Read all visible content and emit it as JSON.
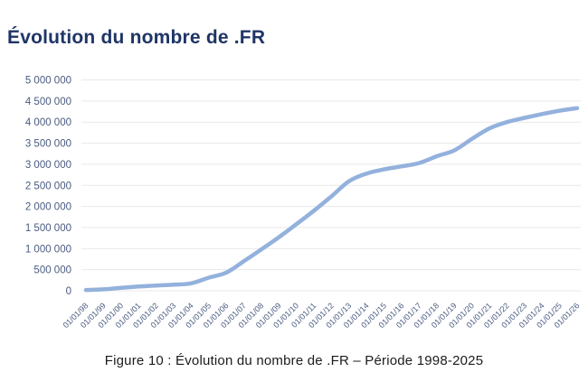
{
  "header": {
    "title": "Évolution du nombre de .FR"
  },
  "caption": {
    "text": "Figure 10 : Évolution du nombre de .FR – Période 1998-2025"
  },
  "colors": {
    "title": "#1f3566",
    "axis_label": "#4a5b80",
    "gridline": "#e9e9e9",
    "line": "#93b1dc",
    "caption": "#1c1c1c",
    "background": "#ffffff"
  },
  "chart_data": {
    "type": "line",
    "title": "Évolution du nombre de .FR",
    "xlabel": "",
    "ylabel": "",
    "x": [
      "01/01/98",
      "01/01/99",
      "01/01/00",
      "01/01/01",
      "01/01/02",
      "01/01/03",
      "01/01/04",
      "01/01/05",
      "01/01/06",
      "01/01/07",
      "01/01/08",
      "01/01/09",
      "01/01/10",
      "01/01/11",
      "01/01/12",
      "01/01/13",
      "01/01/14",
      "01/01/15",
      "01/01/16",
      "01/01/17",
      "01/01/18",
      "01/01/19",
      "01/01/20",
      "01/01/21",
      "01/01/22",
      "01/01/23",
      "01/01/24",
      "01/01/25",
      "01/01/26"
    ],
    "values": [
      20000,
      35000,
      70000,
      100000,
      125000,
      145000,
      175000,
      310000,
      430000,
      700000,
      980000,
      1270000,
      1580000,
      1900000,
      2240000,
      2600000,
      2780000,
      2880000,
      2950000,
      3030000,
      3190000,
      3330000,
      3600000,
      3850000,
      4000000,
      4100000,
      4190000,
      4270000,
      4330000
    ],
    "ylim": [
      0,
      5000000
    ],
    "ytick_step": 500000,
    "ytick_labels": [
      "0",
      "500 000",
      "1 000 000",
      "1 500 000",
      "2 000 000",
      "2 500 000",
      "3 000 000",
      "3 500 000",
      "4 000 000",
      "4 500 000",
      "5 000 000"
    ],
    "grid": true,
    "legend": "none",
    "smooth": true,
    "line_width": 4.5,
    "x_label_rotation": -45
  }
}
